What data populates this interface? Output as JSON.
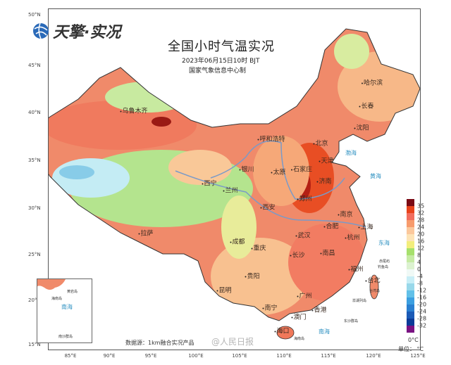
{
  "header": {
    "logo_text": "天擎·实况",
    "title": "全国小时气温实况",
    "datetime": "2023年06月15日10时 BJT",
    "producer": "国家气象信息中心制"
  },
  "axes": {
    "latitudes": [
      "50°N",
      "45°N",
      "40°N",
      "35°N",
      "30°N",
      "25°N",
      "20°N",
      "15°N"
    ],
    "longitudes": [
      "85°E",
      "90°E",
      "95°E",
      "100°E",
      "105°E",
      "110°E",
      "115°E",
      "120°E",
      "125°E"
    ]
  },
  "cities": [
    {
      "name": "乌鲁木齐"
    },
    {
      "name": "呼和浩特"
    },
    {
      "name": "北京"
    },
    {
      "name": "天津"
    },
    {
      "name": "石家庄"
    },
    {
      "name": "太原"
    },
    {
      "name": "济南"
    },
    {
      "name": "银川"
    },
    {
      "name": "西宁"
    },
    {
      "name": "兰州"
    },
    {
      "name": "西安"
    },
    {
      "name": "郑州"
    },
    {
      "name": "南京"
    },
    {
      "name": "合肥"
    },
    {
      "name": "上海"
    },
    {
      "name": "武汉"
    },
    {
      "name": "杭州"
    },
    {
      "name": "成都"
    },
    {
      "name": "重庆"
    },
    {
      "name": "长沙"
    },
    {
      "name": "南昌"
    },
    {
      "name": "贵阳"
    },
    {
      "name": "福州"
    },
    {
      "name": "昆明"
    },
    {
      "name": "台北"
    },
    {
      "name": "广州"
    },
    {
      "name": "南宁"
    },
    {
      "name": "香港"
    },
    {
      "name": "澳门"
    },
    {
      "name": "海口"
    },
    {
      "name": "拉萨"
    },
    {
      "name": "哈尔滨"
    },
    {
      "name": "长春"
    },
    {
      "name": "沈阳"
    }
  ],
  "islands": [
    "钓鱼岛",
    "赤尾屿",
    "台湾岛",
    "澎湖列岛",
    "东沙群岛",
    "海南岛"
  ],
  "seas": [
    "渤海",
    "黄海",
    "东海",
    "南海"
  ],
  "inset": {
    "sea": "南海",
    "labels": [
      "海南岛",
      "黄岩岛",
      "南沙群岛"
    ]
  },
  "legend": {
    "labels": [
      "35",
      "32",
      "28",
      "24",
      "20",
      "16",
      "12",
      "8",
      "4",
      "0",
      "-4",
      "-8",
      "-12",
      "-16",
      "-20",
      "-24",
      "-28",
      "-32"
    ],
    "colors": [
      "#7a0a14",
      "#e8431c",
      "#f26d5e",
      "#f79b6c",
      "#fbc89c",
      "#fde3b6",
      "#f3ee7c",
      "#a6e06c",
      "#c6eba4",
      "#dcf2d0",
      "#f0f9f6",
      "#c8eef6",
      "#98d8ea",
      "#62c0e8",
      "#3c9fe0",
      "#2a7fd0",
      "#1b5ab6",
      "#0b3b98",
      "#7a1282"
    ],
    "zero_line_label": "0°C",
    "unit_label": "单位： °C"
  },
  "footer": {
    "source": "数据源：1km融合实况产品",
    "watermark": "@人民日报"
  }
}
